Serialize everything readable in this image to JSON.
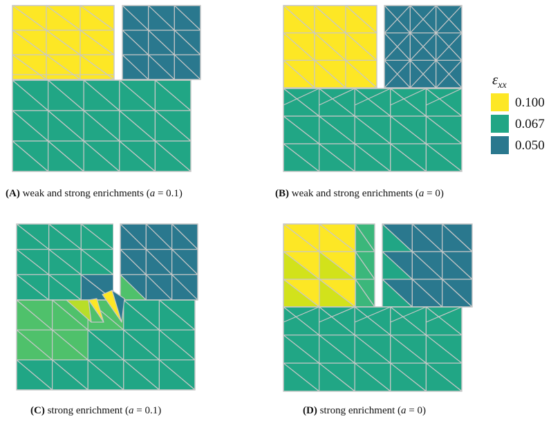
{
  "colors": {
    "strain_high": "#fde725",
    "strain_mid": "#21a685",
    "strain_low": "#2a788e",
    "mesh_edge": "#c8c8c8",
    "c_light_green": "#4fc16b",
    "c_yellow_green": "#b8de29",
    "d_yellow_green": "#d2e21b",
    "d_teal_green": "#3bb77b"
  },
  "legend": {
    "title": "ε",
    "title_sub": "xx",
    "items": [
      {
        "label": "0.100",
        "color": "#fde725"
      },
      {
        "label": "0.067",
        "color": "#21a685"
      },
      {
        "label": "0.050",
        "color": "#2a788e"
      }
    ]
  },
  "panels": [
    {
      "id": "A",
      "letter": "(A)",
      "caption": " weak and strong enrichments (",
      "param": "a",
      "eq": " = 0.1)"
    },
    {
      "id": "B",
      "letter": "(B)",
      "caption": " weak and strong enrichments (",
      "param": "a",
      "eq": " = 0)"
    },
    {
      "id": "C",
      "letter": "(C)",
      "caption": " strong enrichment (",
      "param": "a",
      "eq": " = 0.1)"
    },
    {
      "id": "D",
      "letter": "(D)",
      "caption": " strong enrichment (",
      "param": "a",
      "eq": " = 0)"
    }
  ]
}
